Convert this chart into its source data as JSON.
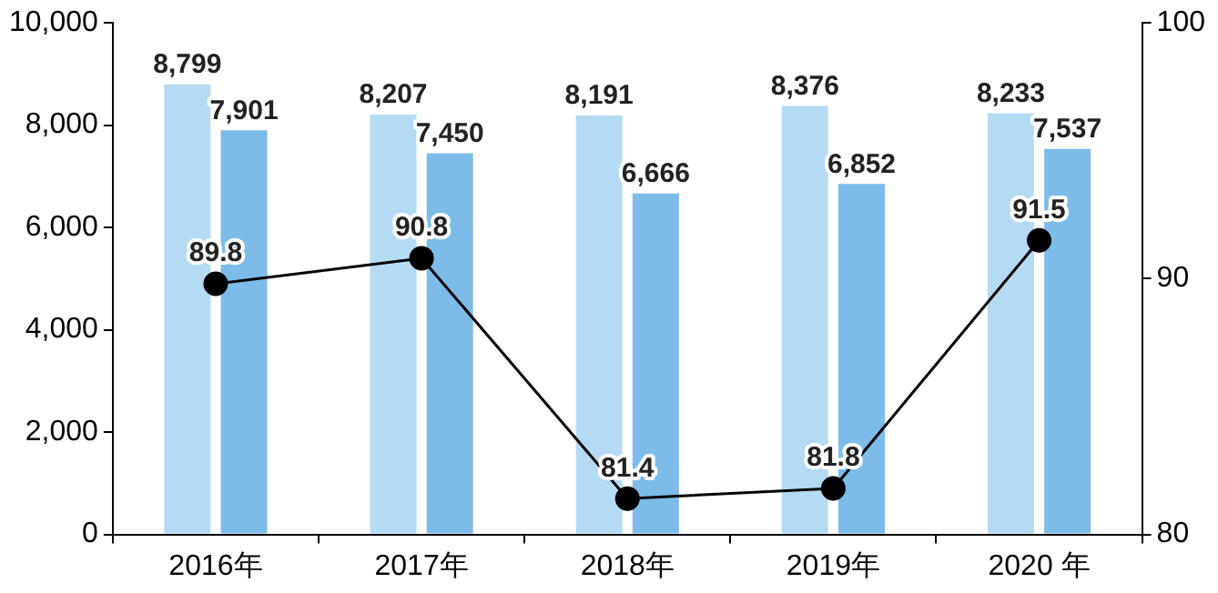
{
  "chart_data": {
    "type": "bar",
    "categories": [
      "2016年",
      "2017年",
      "2018年",
      "2019年",
      "2020 年"
    ],
    "series": [
      {
        "color": "#b5daf4",
        "values": [
          8799,
          8207,
          8191,
          8376,
          8233
        ],
        "value_labels": [
          "8,799",
          "8,207",
          "8,191",
          "8,376",
          "8,233"
        ]
      },
      {
        "color": "#7dbce9",
        "values": [
          7901,
          7450,
          6666,
          6852,
          7537
        ],
        "value_labels": [
          "7,901",
          "7,450",
          "6,666",
          "6,852",
          "7,537"
        ]
      },
      {
        "type": "line",
        "axis": "y2",
        "color": "#000000",
        "marker": "circle",
        "line_style": "solid",
        "values": [
          89.8,
          90.8,
          81.4,
          81.8,
          91.5
        ],
        "value_labels": [
          "89.8",
          "90.8",
          "81.4",
          "81.8",
          "91.5"
        ]
      }
    ],
    "ylim": [
      0,
      10000
    ],
    "yticks": [
      0,
      {
        "value": 2000,
        "label": "2,000"
      },
      {
        "value": 4000,
        "label": "4,000"
      },
      {
        "value": 6000,
        "label": "6,000"
      },
      {
        "value": 8000,
        "label": "8,000"
      },
      {
        "value": 10000,
        "label": "10,000"
      }
    ],
    "y2lim": [
      80,
      100
    ],
    "y2ticks": [
      80,
      90,
      100
    ],
    "grid": false,
    "legend": false
  }
}
